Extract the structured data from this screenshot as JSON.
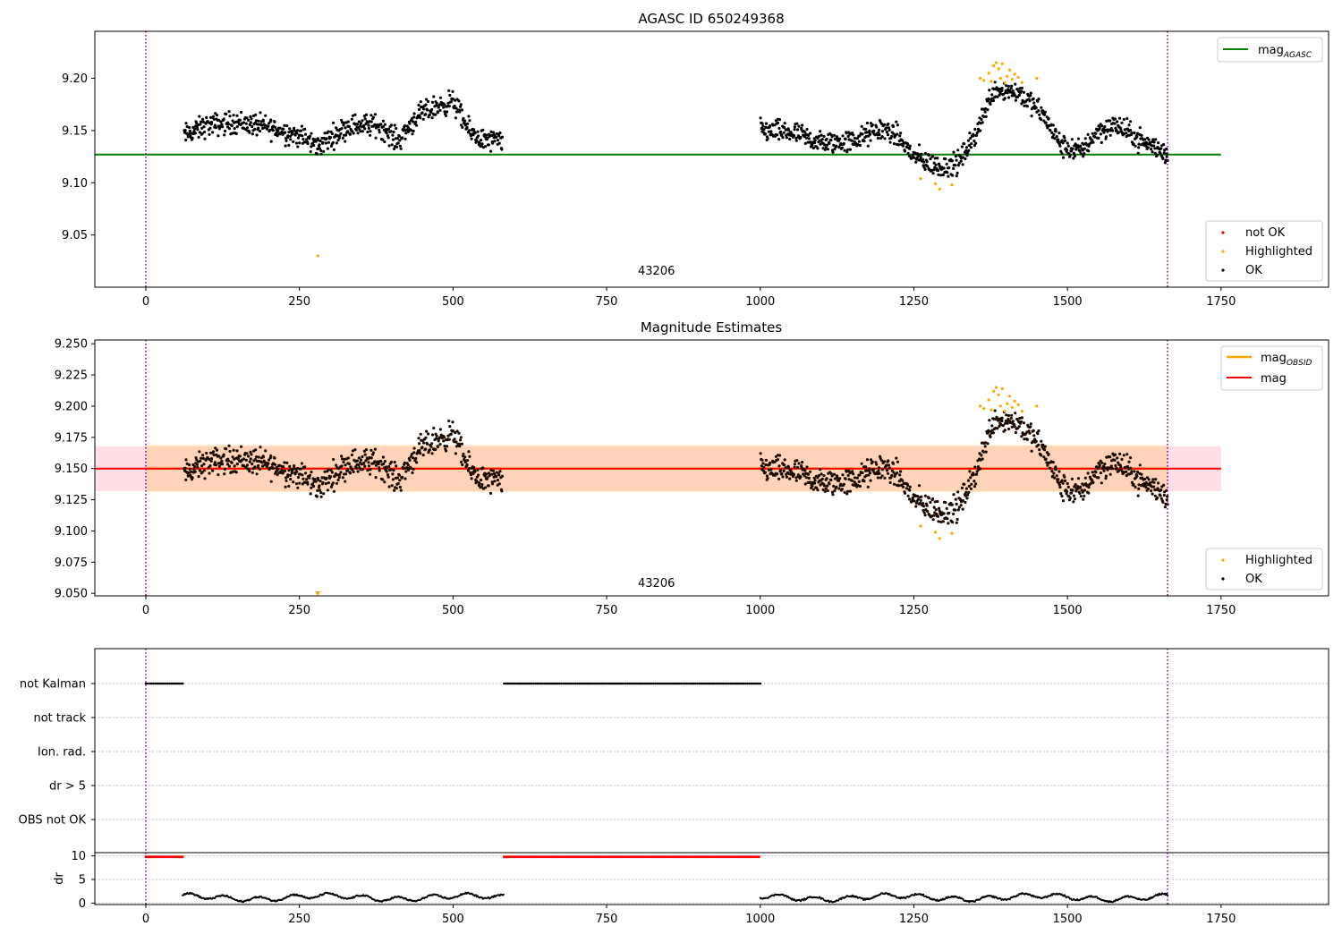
{
  "chart_data": [
    {
      "type": "scatter",
      "title": "AGASC ID 650249368",
      "xlim": [
        -83,
        1925
      ],
      "ylim": [
        9.0,
        9.245
      ],
      "x_ticks": [
        0,
        250,
        500,
        750,
        1000,
        1250,
        1500,
        1750
      ],
      "y_ticks": [
        9.05,
        9.1,
        9.15,
        9.2
      ],
      "y_tick_labels": [
        "9.05",
        "9.10",
        "9.15",
        "9.20"
      ],
      "vlines": [
        0,
        1663
      ],
      "vline_color": "#800080",
      "annotation": {
        "text": "43206",
        "x": 831,
        "y": 9.012
      },
      "reference_line": {
        "label": "mag_AGASC",
        "value": 9.127,
        "x_range": [
          -83,
          1750
        ],
        "color": "#008000"
      },
      "legend_lines": [
        {
          "name": "mag",
          "subscript": "AGASC",
          "color": "#008000"
        }
      ],
      "legend_markers": [
        {
          "name": "not OK",
          "color": "#ff0000"
        },
        {
          "name": "Highlighted",
          "color": "#ffa500"
        },
        {
          "name": "OK",
          "color": "#000000"
        }
      ],
      "series": [
        {
          "name": "OK",
          "color": "#000000",
          "trend": [
            [
              60,
              9.145
            ],
            [
              100,
              9.155
            ],
            [
              150,
              9.158
            ],
            [
              200,
              9.153
            ],
            [
              250,
              9.145
            ],
            [
              280,
              9.135
            ],
            [
              330,
              9.155
            ],
            [
              380,
              9.155
            ],
            [
              410,
              9.14
            ],
            [
              440,
              9.163
            ],
            [
              470,
              9.172
            ],
            [
              500,
              9.178
            ],
            [
              525,
              9.15
            ],
            [
              550,
              9.14
            ],
            [
              580,
              9.14
            ]
          ],
          "trend2": [
            [
              1000,
              9.15
            ],
            [
              1050,
              9.148
            ],
            [
              1100,
              9.138
            ],
            [
              1150,
              9.14
            ],
            [
              1200,
              9.152
            ],
            [
              1225,
              9.143
            ],
            [
              1250,
              9.125
            ],
            [
              1290,
              9.115
            ],
            [
              1320,
              9.118
            ],
            [
              1345,
              9.14
            ],
            [
              1380,
              9.19
            ],
            [
              1420,
              9.187
            ],
            [
              1460,
              9.165
            ],
            [
              1490,
              9.135
            ],
            [
              1520,
              9.13
            ],
            [
              1550,
              9.15
            ],
            [
              1580,
              9.155
            ],
            [
              1620,
              9.14
            ],
            [
              1663,
              9.128
            ]
          ]
        },
        {
          "name": "Highlighted",
          "color": "#ffa500",
          "points": [
            [
              280,
              9.03
            ],
            [
              1261,
              9.104
            ],
            [
              1285,
              9.099
            ],
            [
              1292,
              9.094
            ],
            [
              1312,
              9.098
            ],
            [
              1358,
              9.2
            ],
            [
              1364,
              9.198
            ],
            [
              1372,
              9.205
            ],
            [
              1376,
              9.197
            ],
            [
              1380,
              9.212
            ],
            [
              1384,
              9.215
            ],
            [
              1388,
              9.209
            ],
            [
              1391,
              9.2
            ],
            [
              1394,
              9.214
            ],
            [
              1398,
              9.196
            ],
            [
              1402,
              9.202
            ],
            [
              1406,
              9.208
            ],
            [
              1410,
              9.199
            ],
            [
              1414,
              9.204
            ],
            [
              1420,
              9.201
            ],
            [
              1426,
              9.196
            ],
            [
              1450,
              9.2
            ]
          ]
        }
      ]
    },
    {
      "type": "scatter",
      "title": "Magnitude Estimates",
      "xlim": [
        -83,
        1925
      ],
      "ylim": [
        9.048,
        9.253
      ],
      "x_ticks": [
        0,
        250,
        500,
        750,
        1000,
        1250,
        1500,
        1750
      ],
      "y_ticks": [
        9.05,
        9.075,
        9.1,
        9.125,
        9.15,
        9.175,
        9.2,
        9.225,
        9.25
      ],
      "y_tick_labels": [
        "9.050",
        "9.075",
        "9.100",
        "9.125",
        "9.150",
        "9.175",
        "9.200",
        "9.225",
        "9.250"
      ],
      "vlines": [
        0,
        1663
      ],
      "vline_color": "#800080",
      "annotation": {
        "text": "43206",
        "x": 831,
        "y": 9.055
      },
      "mag_line": {
        "label": "mag",
        "value": 9.15,
        "x_range": [
          -83,
          1750
        ],
        "color": "#ff0000"
      },
      "mag_band": {
        "low": 9.132,
        "high": 9.168,
        "x_range": [
          -83,
          1750
        ],
        "color": "#ffc0cb"
      },
      "obsid_band": {
        "low": 9.131,
        "high": 9.169,
        "x_range": [
          0,
          1663
        ],
        "color": "#ffa500"
      },
      "obsid_line": {
        "value": 9.15,
        "x_range": [
          0,
          1663
        ],
        "color": "#ffa500"
      },
      "legend_lines": [
        {
          "name": "mag",
          "subscript": "OBSID",
          "color": "#ffa500"
        },
        {
          "name": "mag",
          "subscript": "",
          "color": "#ff0000"
        }
      ],
      "legend_markers": [
        {
          "name": "Highlighted",
          "color": "#ffa500"
        },
        {
          "name": "OK",
          "color": "#000000"
        }
      ],
      "offscale_marker": {
        "x": 280,
        "color": "#ffa500"
      }
    },
    {
      "type": "scatter",
      "title": "",
      "xlim": [
        -83,
        1925
      ],
      "x_ticks": [
        0,
        250,
        500,
        750,
        1000,
        1250,
        1500,
        1750
      ],
      "vlines": [
        0,
        1663
      ],
      "vline_color": "#800080",
      "flag_rows": [
        "not Kalman",
        "not track",
        "Ion. rad.",
        "dr > 5",
        "OBS not OK"
      ],
      "flag_segments": [
        {
          "row": "not Kalman",
          "x_ranges": [
            [
              0,
              62
            ],
            [
              583,
              1000
            ]
          ],
          "color": "#000000"
        }
      ],
      "dr_panel": {
        "ylabel": "dr",
        "y_ticks": [
          0,
          5,
          10
        ],
        "y_tick_labels": [
          "0",
          "5",
          "10"
        ],
        "ylim": [
          -0.3,
          10.5
        ],
        "high_segments": [
          [
            0,
            62
          ],
          [
            583,
            1000
          ]
        ],
        "high_value": 9.8,
        "high_color": "#ff0000",
        "low_ranges": [
          [
            60,
            583
          ],
          [
            1000,
            1663
          ]
        ],
        "low_color": "#000000"
      }
    }
  ]
}
